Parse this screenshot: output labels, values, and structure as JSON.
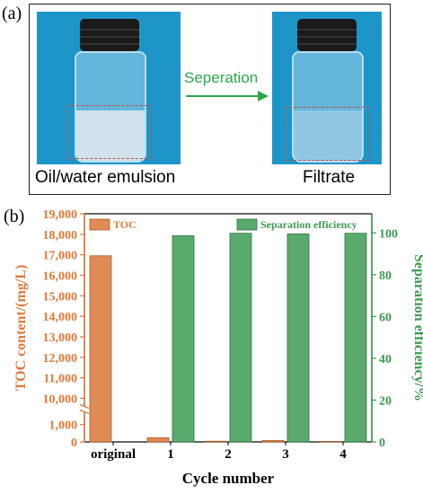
{
  "panel_a": {
    "label": "(a)",
    "left_caption": "Oil/water emulsion",
    "right_caption": "Filtrate",
    "arrow_label": "Seperation",
    "arrow_color": "#2aa84a",
    "photo_background": "#1e95c9"
  },
  "panel_b": {
    "label": "(b)"
  },
  "chart_data": {
    "type": "bar",
    "categories": [
      "original",
      "1",
      "2",
      "3",
      "4"
    ],
    "xlabel": "Cycle number",
    "series": [
      {
        "name": "TOC",
        "axis": "left",
        "color": "#e08a55",
        "values": [
          16950,
          240,
          40,
          80,
          30
        ]
      },
      {
        "name": "Separation efficiency",
        "axis": "right",
        "color": "#5aaa6e",
        "values": [
          null,
          98.6,
          99.8,
          99.5,
          99.8
        ]
      }
    ],
    "left_axis": {
      "label": "TOC content/(mg/L)",
      "color": "#e07a3a",
      "broken": true,
      "lower_ticks": [
        0,
        1000
      ],
      "lower_tick_labels": [
        "0",
        "1,000"
      ],
      "upper_ticks": [
        10000,
        11000,
        12000,
        13000,
        14000,
        15000,
        16000,
        17000,
        18000,
        19000
      ],
      "upper_tick_labels": [
        "10,000",
        "11,000",
        "12,000",
        "13,000",
        "14,000",
        "15,000",
        "16,000",
        "17,000",
        "18,000",
        "19,000"
      ],
      "break_between": [
        1500,
        9800
      ]
    },
    "right_axis": {
      "label": "Separation efficiency/%",
      "color": "#3e9a52",
      "ticks": [
        0,
        20,
        40,
        60,
        80,
        100
      ],
      "ylim": [
        0,
        110
      ]
    },
    "legend": [
      "TOC",
      "Separation efficiency"
    ]
  }
}
